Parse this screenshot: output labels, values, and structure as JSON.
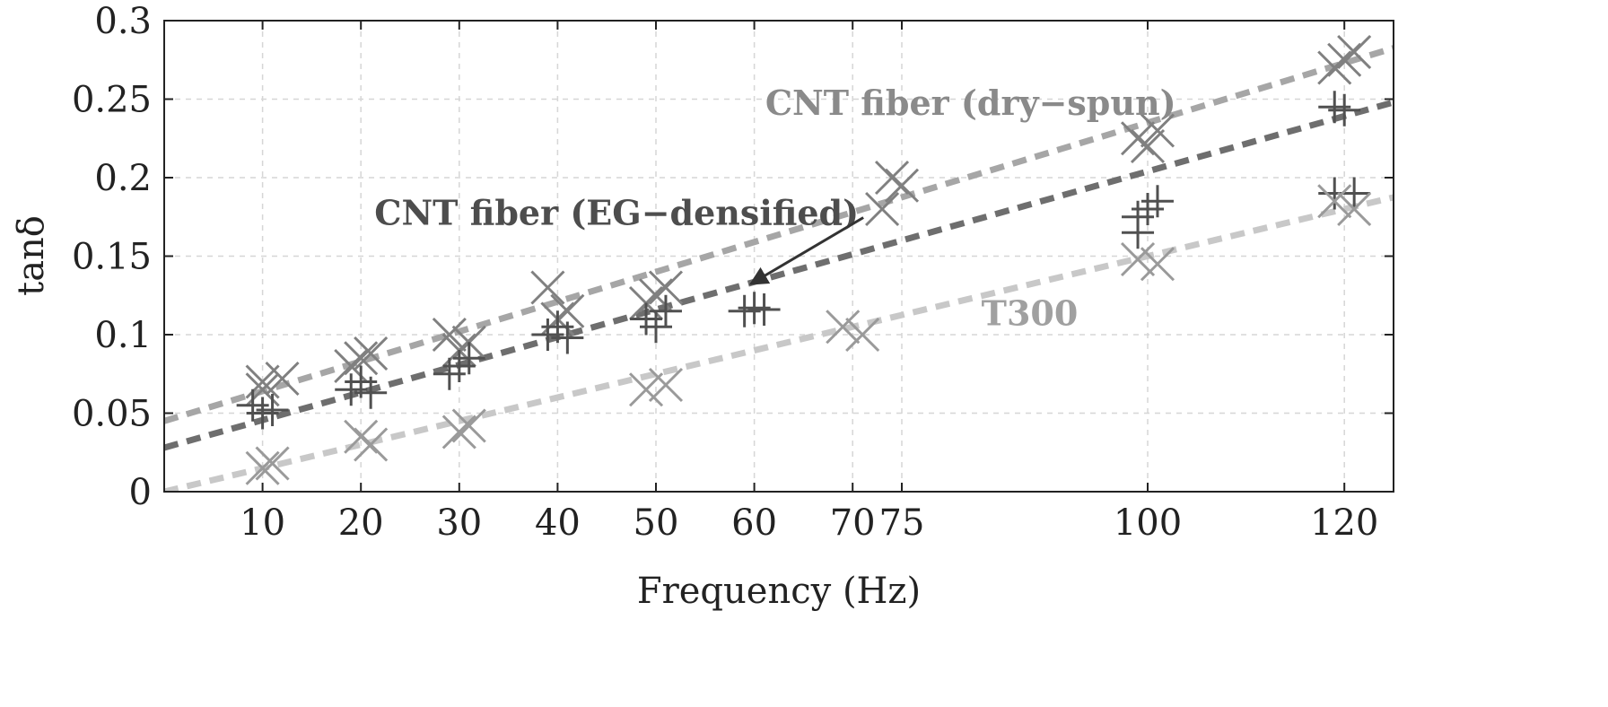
{
  "chart_data": {
    "type": "scatter",
    "title": "",
    "xlabel": "Frequency (Hz)",
    "ylabel": "tanδ",
    "xlim": [
      0,
      125
    ],
    "ylim": [
      0,
      0.3
    ],
    "grid": true,
    "x_ticks": [
      10,
      20,
      30,
      40,
      50,
      60,
      70,
      75,
      100,
      120
    ],
    "y_ticks": [
      0,
      0.05,
      0.1,
      0.15,
      0.2,
      0.25,
      0.3
    ],
    "x_tick_labels": [
      "10",
      "20",
      "30",
      "40",
      "50",
      "60",
      "70",
      "75",
      "100",
      "120"
    ],
    "y_tick_labels": [
      "0",
      "0.05",
      "0.1",
      "0.15",
      "0.2",
      "0.25",
      "0.3"
    ],
    "series": [
      {
        "name": "CNT fiber (dry−spun)",
        "marker": "x",
        "color": "#808080",
        "fit_color": "#a6a6a6",
        "fit": {
          "intercept": 0.045,
          "slope": 0.0019
        },
        "points": [
          [
            10,
            0.07
          ],
          [
            10,
            0.065
          ],
          [
            12,
            0.072
          ],
          [
            20,
            0.085
          ],
          [
            19,
            0.08
          ],
          [
            21,
            0.088
          ],
          [
            30,
            0.09
          ],
          [
            31,
            0.095
          ],
          [
            29,
            0.1
          ],
          [
            39,
            0.13
          ],
          [
            40,
            0.11
          ],
          [
            41,
            0.115
          ],
          [
            49,
            0.12
          ],
          [
            50,
            0.125
          ],
          [
            51,
            0.13
          ],
          [
            74,
            0.2
          ],
          [
            75,
            0.195
          ],
          [
            73,
            0.18
          ],
          [
            99,
            0.225
          ],
          [
            100,
            0.22
          ],
          [
            101,
            0.23
          ],
          [
            119,
            0.27
          ],
          [
            120,
            0.275
          ],
          [
            121,
            0.28
          ]
        ]
      },
      {
        "name": "CNT fiber (EG−densified)",
        "marker": "+",
        "color": "#505050",
        "fit_color": "#6e6e6e",
        "fit": {
          "intercept": 0.028,
          "slope": 0.00176
        },
        "points": [
          [
            9,
            0.055
          ],
          [
            10,
            0.05
          ],
          [
            11,
            0.052
          ],
          [
            19,
            0.065
          ],
          [
            20,
            0.07
          ],
          [
            21,
            0.063
          ],
          [
            29,
            0.075
          ],
          [
            30,
            0.08
          ],
          [
            31,
            0.085
          ],
          [
            39,
            0.1
          ],
          [
            40,
            0.105
          ],
          [
            41,
            0.098
          ],
          [
            49,
            0.11
          ],
          [
            50,
            0.105
          ],
          [
            51,
            0.115
          ],
          [
            59,
            0.115
          ],
          [
            60,
            0.117
          ],
          [
            61,
            0.116
          ],
          [
            99,
            0.175
          ],
          [
            100,
            0.18
          ],
          [
            101,
            0.185
          ],
          [
            99,
            0.165
          ],
          [
            119,
            0.245
          ],
          [
            120,
            0.243
          ],
          [
            121,
            0.19
          ],
          [
            119,
            0.19
          ]
        ]
      },
      {
        "name": "T300",
        "marker": "x",
        "color": "#9a9a9a",
        "fit_color": "#c8c8c8",
        "fit": {
          "intercept": 0.0,
          "slope": 0.0015
        },
        "points": [
          [
            10,
            0.015
          ],
          [
            11,
            0.018
          ],
          [
            20,
            0.035
          ],
          [
            21,
            0.03
          ],
          [
            30,
            0.038
          ],
          [
            31,
            0.042
          ],
          [
            49,
            0.065
          ],
          [
            51,
            0.068
          ],
          [
            69,
            0.105
          ],
          [
            71,
            0.1
          ],
          [
            99,
            0.148
          ],
          [
            101,
            0.145
          ],
          [
            119,
            0.185
          ],
          [
            121,
            0.18
          ]
        ]
      }
    ],
    "annotations": [
      {
        "text": "CNT fiber (dry−spun)",
        "x": 82,
        "y": 0.24,
        "color": "#8a8a8a"
      },
      {
        "text": "CNT fiber (EG−densified)",
        "x": 46,
        "y": 0.17,
        "color": "#4d4d4d",
        "arrow_to": [
          60,
          0.13
        ]
      },
      {
        "text": "T300",
        "x": 88,
        "y": 0.106,
        "color": "#a0a0a0"
      }
    ]
  }
}
